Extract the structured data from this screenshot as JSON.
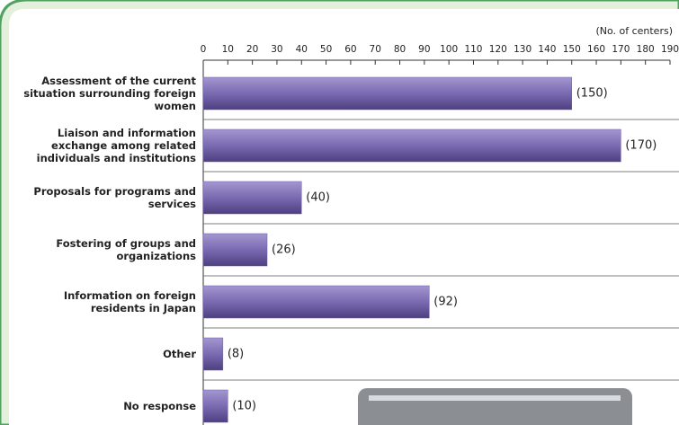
{
  "chart_data": {
    "type": "bar",
    "orientation": "horizontal",
    "x_label": "(No. of centers)",
    "categories": [
      "Assessment of the current situation surrounding foreign women",
      "Liaison and information exchange among related individuals and institutions",
      "Proposals for programs and services",
      "Fostering of groups and organizations",
      "Information on foreign residents in Japan",
      "Other",
      "No response"
    ],
    "values": [
      150,
      170,
      40,
      26,
      92,
      8,
      10
    ],
    "value_labels": [
      "(150)",
      "(170)",
      "(40)",
      "(26)",
      "(92)",
      "(8)",
      "(10)"
    ],
    "color": "#6e5ea6",
    "xlim": [
      0,
      190
    ],
    "xticks": [
      0,
      10,
      20,
      30,
      40,
      50,
      60,
      70,
      80,
      90,
      100,
      110,
      120,
      130,
      140,
      150,
      160,
      170,
      180,
      190
    ]
  }
}
